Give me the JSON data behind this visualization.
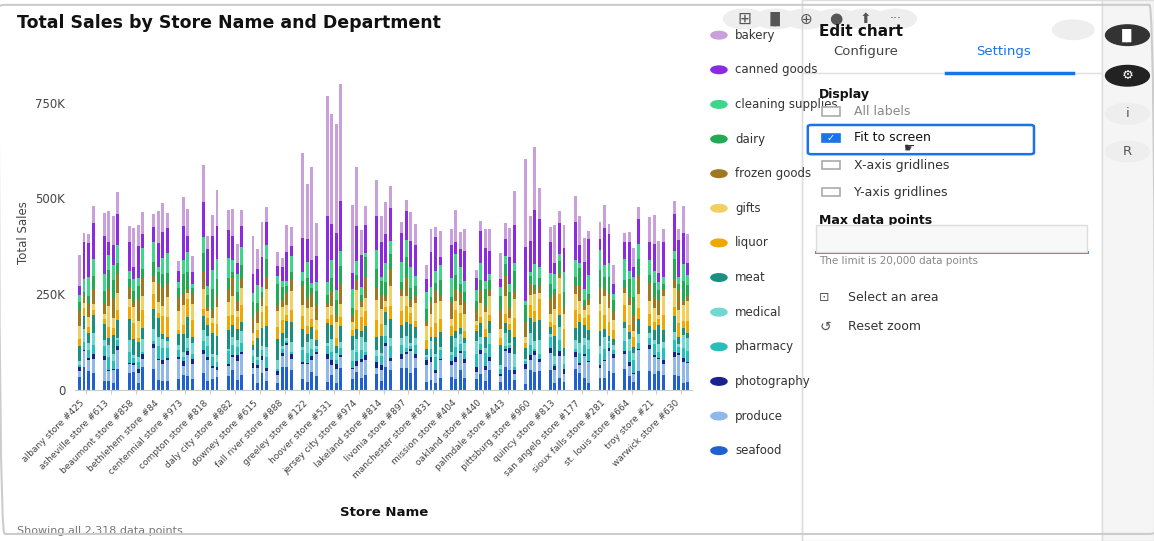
{
  "title": "Total Sales by Store Name and Department",
  "xlabel": "Store Name",
  "ylabel": "Total Sales",
  "footer": "Showing all 2,318 data points",
  "yticks": [
    0,
    250000,
    500000,
    750000
  ],
  "ytick_labels": [
    "0",
    "250K",
    "500K",
    "750K"
  ],
  "stores": [
    "albany store #425",
    "asheville store #613",
    "beaumont store #858",
    "bethlehem store #84",
    "centennial store #973",
    "compton store #818",
    "daly city store #882",
    "downey store #615",
    "fall river store #888",
    "greeley store #122",
    "hoover store #531",
    "jersey city store #974",
    "lakeland store #814",
    "livonia store #897",
    "manchester store #831",
    "mission store #404",
    "oakland store #440",
    "palmdale store #443",
    "pittsburg store #960",
    "quincy store #813",
    "san angelo store #177",
    "sioux falls store #281",
    "st. louis store #664",
    "troy store #21",
    "warwick store #630"
  ],
  "departments": [
    "seafood",
    "produce",
    "photography",
    "pharmacy",
    "medical",
    "meat",
    "liquor",
    "gifts",
    "frozen goods",
    "dairy",
    "cleaning supplies",
    "canned goods",
    "bakery"
  ],
  "dept_colors": {
    "bakery": "#c9a0dc",
    "canned goods": "#8a2be2",
    "cleaning supplies": "#3dd68c",
    "dairy": "#22aa55",
    "frozen goods": "#a07820",
    "gifts": "#f0d060",
    "liquor": "#f0a800",
    "meat": "#1a9080",
    "medical": "#70d8d0",
    "pharmacy": "#25c0b8",
    "photography": "#1a2090",
    "produce": "#90b8e8",
    "seafood": "#2060d0"
  },
  "seed": 42,
  "background_color": "#ffffff",
  "right_panel_bg": "#ffffff"
}
